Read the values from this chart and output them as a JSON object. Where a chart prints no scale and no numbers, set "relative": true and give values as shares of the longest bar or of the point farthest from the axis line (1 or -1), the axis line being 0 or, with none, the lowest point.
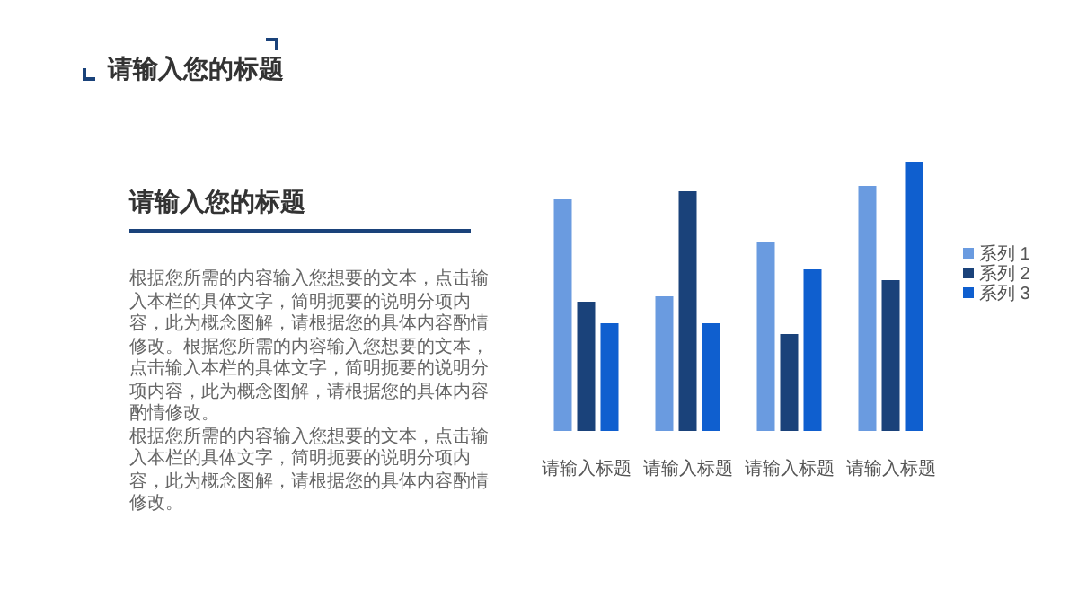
{
  "chart_data": {
    "type": "bar",
    "title": "请输入您的标题",
    "subtitle": "请输入您的标题",
    "annotations": [
      "根据您所需的内容输入您想要的文本，点击输入本栏的具体文字，简明扼要的说明分项内容，此为概念图解，请根据您的具体内容酌情修改。根据您所需的内容输入您想要的文本，点击输入本栏的具体文字，简明扼要的说明分项内容，此为概念图解，请根据您的具体内容酌情修改。",
      "根据您所需的内容输入您想要的文本，点击输入本栏的具体文字，简明扼要的说明分项内容，此为概念图解，请根据您的具体内容酌情修改。"
    ],
    "categories": [
      "请输入标题",
      "请输入标题",
      "请输入标题",
      "请输入标题"
    ],
    "relative": true,
    "legend": "right",
    "series": [
      {
        "name": "系列 1",
        "color": "#6a9be0",
        "values": [
          0.86,
          0.5,
          0.7,
          0.91
        ]
      },
      {
        "name": "系列 2",
        "color": "#1a427a",
        "values": [
          0.48,
          0.89,
          0.36,
          0.56
        ]
      },
      {
        "name": "系列 3",
        "color": "#0f5fcf",
        "values": [
          0.4,
          0.4,
          0.6,
          1
        ]
      }
    ]
  }
}
